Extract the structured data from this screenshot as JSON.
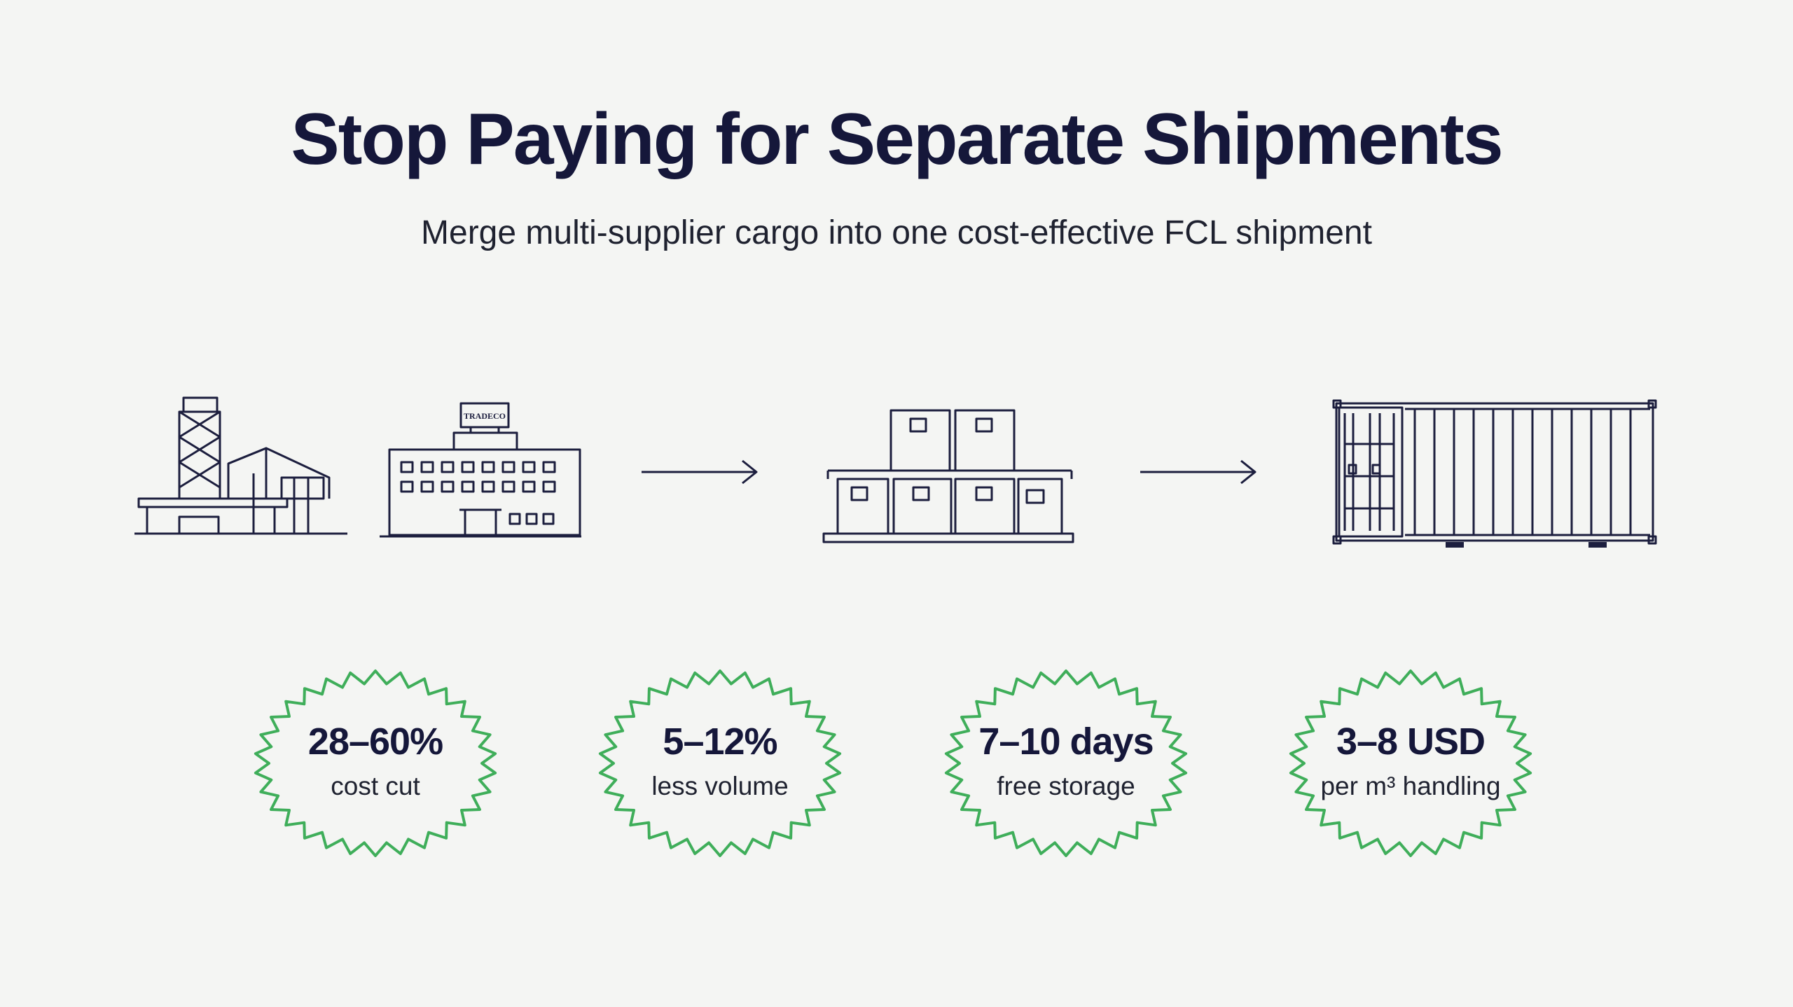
{
  "title": "Stop Paying for Separate Shipments",
  "subtitle": "Merge multi-supplier cargo into one cost-effective FCL shipment",
  "icons": {
    "stage1": [
      "factory-icon",
      "office-building-icon"
    ],
    "stage2": "stacked-boxes-icon",
    "stage3": "shipping-container-icon",
    "arrows": [
      "arrow-right-icon",
      "arrow-right-icon"
    ]
  },
  "sign_text": "TRADECO",
  "colors": {
    "ink": "#1c1e3e",
    "badge_green": "#3fae5a",
    "background": "#f4f5f3"
  },
  "badges": [
    {
      "value": "28–60%",
      "label": "cost cut"
    },
    {
      "value": "5–12%",
      "label": "less volume"
    },
    {
      "value": "7–10 days",
      "label": "free storage"
    },
    {
      "value": "3–8 USD",
      "label": "per m³ handling"
    }
  ]
}
